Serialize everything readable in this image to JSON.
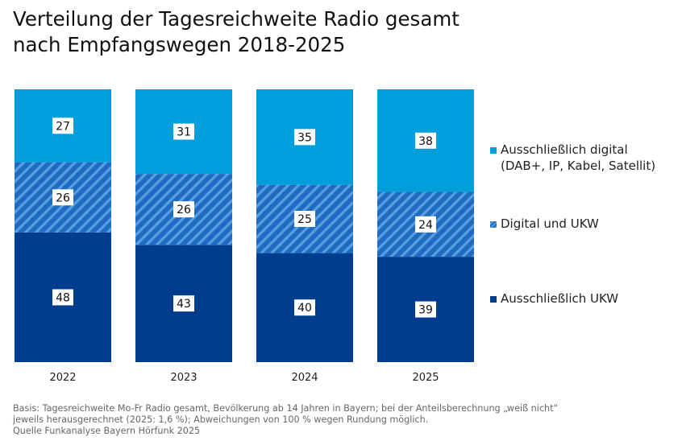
{
  "header": {
    "title_line1": "Verteilung der Tagesreichweite Radio gesamt",
    "title_line2": "nach Empfangswegen 2018-2025"
  },
  "chart_data": {
    "type": "bar",
    "stacked": true,
    "normalized_percent": true,
    "categories": [
      "2022",
      "2023",
      "2024",
      "2025"
    ],
    "series": [
      {
        "name": "Ausschließlich UKW",
        "values": [
          48,
          43,
          40,
          39
        ],
        "color": "#003d8f",
        "pattern": "solid"
      },
      {
        "name": "Digital und UKW",
        "values": [
          26,
          26,
          25,
          24
        ],
        "color": "#1f6bc2",
        "pattern": "diagonal-stripes"
      },
      {
        "name": "Ausschließlich digital (DAB+, IP, Kabel, Satellit)",
        "values": [
          27,
          31,
          35,
          38
        ],
        "color": "#009fdb",
        "pattern": "solid"
      }
    ],
    "legend_placement": "right",
    "grid": false,
    "data_labels": true
  },
  "legend": {
    "digital_line1": "Ausschließlich digital",
    "digital_line2": "(DAB+, IP, Kabel, Satellit)",
    "both": "Digital und UKW",
    "ukw": "Ausschließlich UKW"
  },
  "footer": {
    "line1": "Basis: Tagesreichweite Mo-Fr Radio gesamt, Bevölkerung ab 14 Jahren in Bayern; bei der Anteilsberechnung „weiß nicht“",
    "line2": "jeweils herausgerechnet (2025: 1,6 %); Abweichungen von 100 % wegen Rundung möglich.",
    "line3": "Quelle Funkanalyse Bayern Hörfunk 2025"
  }
}
